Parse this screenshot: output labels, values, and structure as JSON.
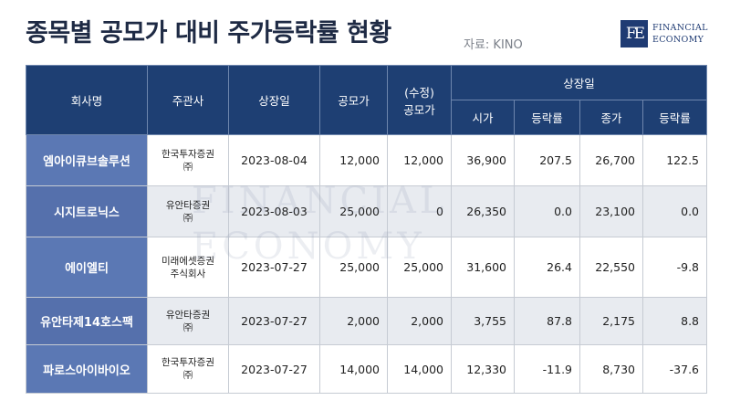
{
  "header": {
    "title": "종목별 공모가 대비 주가등락률 현황",
    "source": "자료: KINO"
  },
  "logo": {
    "mark": "FE",
    "line1": "FINANCIAL",
    "line2": "ECONOMY"
  },
  "table": {
    "headers": {
      "company": "회사명",
      "underwriter": "주관사",
      "listing_date": "상장일",
      "offer_price": "공모가",
      "revised_offer_line1": "(수정)",
      "revised_offer_line2": "공모가",
      "group": "상장일",
      "open": "시가",
      "open_change": "등락률",
      "close": "종가",
      "close_change": "등락률"
    },
    "rows": [
      {
        "company": "엠아이큐브솔루션",
        "underwriter_line1": "한국투자증권",
        "underwriter_line2": "㈜",
        "listing_date": "2023-08-04",
        "offer_price": "12,000",
        "revised_offer": "12,000",
        "open": "36,900",
        "open_change": "207.5",
        "close": "26,700",
        "close_change": "122.5"
      },
      {
        "company": "시지트로닉스",
        "underwriter_line1": "유안타증권",
        "underwriter_line2": "㈜",
        "listing_date": "2023-08-03",
        "offer_price": "25,000",
        "revised_offer": "0",
        "open": "26,350",
        "open_change": "0.0",
        "close": "23,100",
        "close_change": "0.0"
      },
      {
        "company": "에이엘티",
        "underwriter_line1": "미래에셋증권",
        "underwriter_line2": "주식회사",
        "listing_date": "2023-07-27",
        "offer_price": "25,000",
        "revised_offer": "25,000",
        "open": "31,600",
        "open_change": "26.4",
        "close": "22,550",
        "close_change": "-9.8"
      },
      {
        "company": "유안타제14호스팩",
        "underwriter_line1": "유안타증권",
        "underwriter_line2": "㈜",
        "listing_date": "2023-07-27",
        "offer_price": "2,000",
        "revised_offer": "2,000",
        "open": "3,755",
        "open_change": "87.8",
        "close": "2,175",
        "close_change": "8.8"
      },
      {
        "company": "파로스아이바이오",
        "underwriter_line1": "한국투자증권",
        "underwriter_line2": "㈜",
        "listing_date": "2023-07-27",
        "offer_price": "14,000",
        "revised_offer": "14,000",
        "open": "12,330",
        "open_change": "-11.9",
        "close": "8,730",
        "close_change": "-37.6"
      }
    ]
  },
  "watermark": {
    "line1": "FINANCIAL",
    "line2": "ECONOMY"
  }
}
